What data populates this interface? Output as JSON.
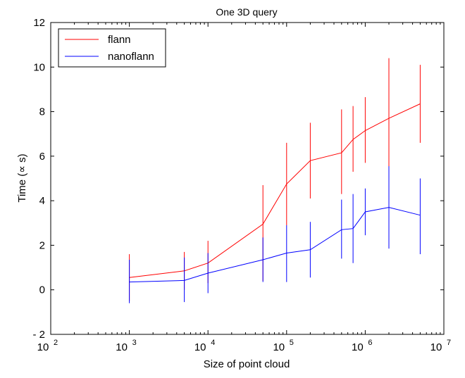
{
  "chart_data": {
    "type": "line",
    "title": "One 3D query",
    "xlabel": "Size of point cloud",
    "ylabel": "Time (∝ s)",
    "x_scale": "log",
    "xlim": [
      100,
      10000000
    ],
    "ylim": [
      -2,
      12
    ],
    "y_ticks": [
      -2,
      0,
      2,
      4,
      6,
      8,
      10,
      12
    ],
    "y_tick_labels": [
      "- 2",
      "0",
      "2",
      "4",
      "6",
      "8",
      "10",
      "12"
    ],
    "x_ticks": [
      100,
      1000,
      10000,
      100000,
      1000000,
      10000000
    ],
    "x_tick_labels": [
      {
        "base": "10",
        "exp": "2"
      },
      {
        "base": "10",
        "exp": "3"
      },
      {
        "base": "10",
        "exp": "4"
      },
      {
        "base": "10",
        "exp": "5"
      },
      {
        "base": "10",
        "exp": "6"
      },
      {
        "base": "10",
        "exp": "7"
      }
    ],
    "grid": false,
    "legend_position": "top-left",
    "x": [
      1000,
      5000,
      10000,
      50000,
      100000,
      200000,
      500000,
      700000,
      1000000,
      2000000,
      5000000
    ],
    "series": [
      {
        "name": "flann",
        "color": "#ff0000",
        "values": [
          0.55,
          0.85,
          1.2,
          2.95,
          4.75,
          5.8,
          6.15,
          6.75,
          7.15,
          7.7,
          8.35
        ],
        "err_low": [
          -0.5,
          0.0,
          0.3,
          0.4,
          2.9,
          4.1,
          4.3,
          5.3,
          5.7,
          5.0,
          6.6
        ],
        "err_high": [
          1.6,
          1.7,
          2.2,
          4.7,
          6.6,
          7.5,
          8.1,
          8.25,
          8.65,
          10.4,
          10.1
        ]
      },
      {
        "name": "nanoflann",
        "color": "#0000ff",
        "values": [
          0.35,
          0.42,
          0.75,
          1.35,
          1.65,
          1.8,
          2.7,
          2.75,
          3.5,
          3.7,
          3.35
        ],
        "err_low": [
          -0.6,
          -0.55,
          -0.15,
          0.35,
          0.35,
          0.55,
          1.4,
          1.2,
          2.45,
          1.85,
          1.6
        ],
        "err_high": [
          1.35,
          1.45,
          1.65,
          2.35,
          2.9,
          3.05,
          4.05,
          4.3,
          4.55,
          5.55,
          5.0
        ]
      }
    ]
  }
}
